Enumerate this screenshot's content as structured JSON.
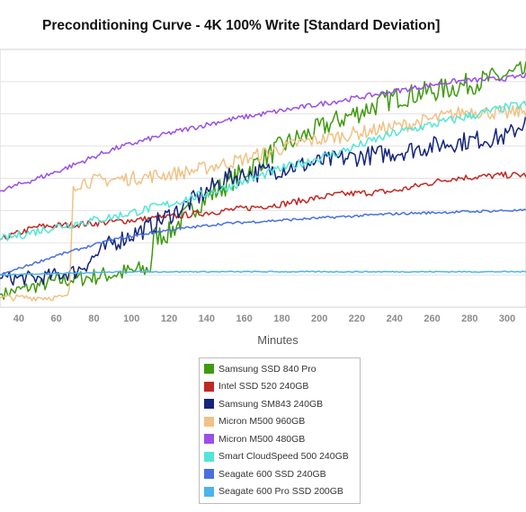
{
  "chart_data": {
    "type": "line",
    "title": "Preconditioning Curve - 4K 100% Write [Standard Deviation]",
    "xlabel": "Minutes",
    "ylabel": "",
    "xlim": [
      30,
      310
    ],
    "ylim": [
      0,
      8
    ],
    "x_ticks": [
      40,
      60,
      80,
      100,
      120,
      140,
      160,
      180,
      200,
      220,
      240,
      260,
      280,
      300
    ],
    "grid": true,
    "legend_position": "bottom-center",
    "series": [
      {
        "name": "Samsung SSD 840 Pro",
        "color": "#3f9a0e",
        "x": [
          30,
          60,
          100,
          110,
          112,
          120,
          135,
          150,
          180,
          210,
          240,
          270,
          300,
          310
        ],
        "values": [
          0.4,
          0.8,
          1.1,
          1.2,
          2.2,
          2.3,
          3.2,
          3.8,
          5.0,
          5.8,
          6.5,
          6.8,
          7.2,
          7.3
        ]
      },
      {
        "name": "Intel SSD 520 240GB",
        "color": "#bf2a23",
        "x": [
          30,
          50,
          80,
          120,
          150,
          180,
          210,
          240,
          270,
          300,
          310
        ],
        "values": [
          2.1,
          2.5,
          2.6,
          2.8,
          3.0,
          3.2,
          3.5,
          3.6,
          4.0,
          4.1,
          4.1
        ]
      },
      {
        "name": "Samsung SM843 240GB",
        "color": "#14257a",
        "x": [
          30,
          50,
          70,
          90,
          110,
          130,
          150,
          180,
          210,
          240,
          270,
          300,
          310
        ],
        "values": [
          0.9,
          0.9,
          1.1,
          2.0,
          2.5,
          3.2,
          4.0,
          4.3,
          4.6,
          4.8,
          5.1,
          5.3,
          5.8
        ]
      },
      {
        "name": "Micron M500 960GB",
        "color": "#f0c285",
        "x": [
          30,
          65,
          67,
          69,
          75,
          100,
          130,
          160,
          190,
          220,
          250,
          280,
          300,
          310
        ],
        "values": [
          0.3,
          0.3,
          0.5,
          3.8,
          3.9,
          4.0,
          4.2,
          4.6,
          5.1,
          5.4,
          5.7,
          6.1,
          6.0,
          6.1
        ]
      },
      {
        "name": "Micron M500 480GB",
        "color": "#9a4fe6",
        "x": [
          30,
          60,
          90,
          120,
          150,
          180,
          210,
          240,
          270,
          300,
          310
        ],
        "values": [
          3.6,
          4.2,
          4.9,
          5.4,
          5.8,
          6.1,
          6.4,
          6.7,
          7.0,
          7.1,
          7.2
        ]
      },
      {
        "name": "Smart CloudSpeed 500 240GB",
        "color": "#52e5d8",
        "x": [
          30,
          60,
          90,
          120,
          150,
          180,
          210,
          240,
          270,
          300,
          310
        ],
        "values": [
          2.1,
          2.5,
          2.8,
          3.2,
          3.7,
          4.3,
          4.8,
          5.4,
          5.8,
          6.2,
          6.3
        ]
      },
      {
        "name": "Seagate 600 SSD 240GB",
        "color": "#4770e0",
        "x": [
          30,
          60,
          90,
          120,
          150,
          180,
          210,
          240,
          270,
          300,
          310
        ],
        "values": [
          1.0,
          1.6,
          2.1,
          2.4,
          2.6,
          2.7,
          2.8,
          2.9,
          2.95,
          3.0,
          3.0
        ]
      },
      {
        "name": "Seagate 600 Pro SSD 200GB",
        "color": "#4bb4ec",
        "x": [
          30,
          60,
          100,
          150,
          200,
          250,
          300,
          310
        ],
        "values": [
          1.0,
          1.05,
          1.1,
          1.1,
          1.1,
          1.1,
          1.1,
          1.1
        ]
      }
    ]
  }
}
